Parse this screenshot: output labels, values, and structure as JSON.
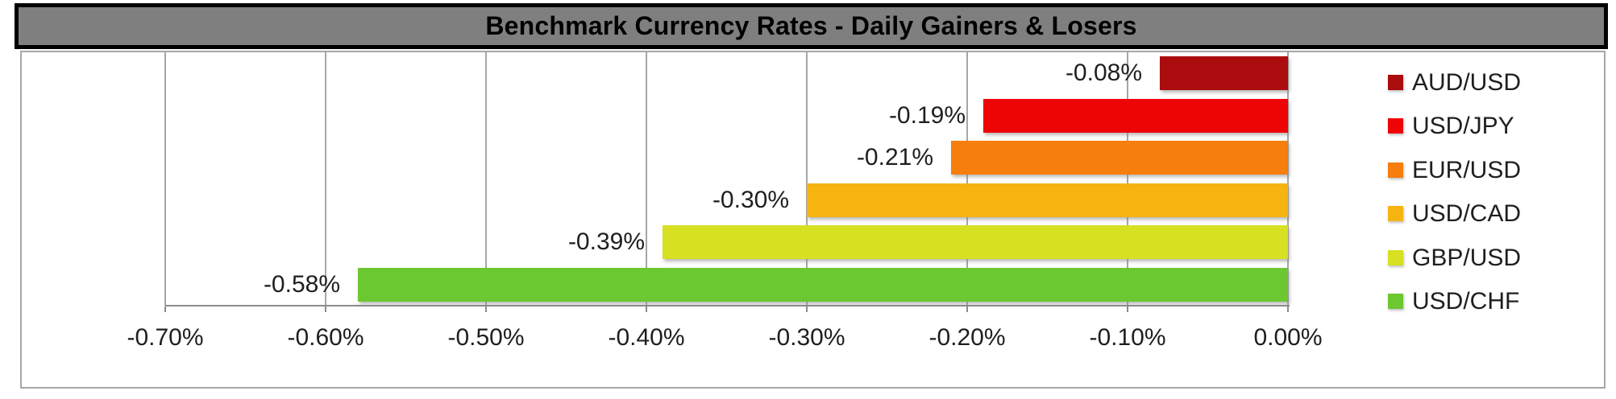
{
  "title": "Benchmark Currency Rates - Daily Gainers & Losers",
  "colors": {
    "title_bg": "#7f7f7f",
    "title_border": "#000000",
    "title_text": "#000000",
    "body_border": "#a6a6a6",
    "gridline": "#a6a6a6",
    "axis": "#8c8c8c",
    "label_text": "#1f1f1f"
  },
  "chart_data": {
    "type": "bar",
    "orientation": "horizontal",
    "title": "Benchmark Currency Rates - Daily Gainers & Losers",
    "xlabel": "",
    "ylabel": "",
    "grid": true,
    "legend_position": "right",
    "x_axis": {
      "min": -0.7,
      "max": 0.0,
      "tick_step": 0.1,
      "unit": "%",
      "ticks": [
        {
          "value": -0.7,
          "label": "-0.70%"
        },
        {
          "value": -0.6,
          "label": "-0.60%"
        },
        {
          "value": -0.5,
          "label": "-0.50%"
        },
        {
          "value": -0.4,
          "label": "-0.40%"
        },
        {
          "value": -0.3,
          "label": "-0.30%"
        },
        {
          "value": -0.2,
          "label": "-0.20%"
        },
        {
          "value": -0.1,
          "label": "-0.10%"
        },
        {
          "value": 0.0,
          "label": "0.00%"
        }
      ]
    },
    "series": [
      {
        "name": "AUD/USD",
        "value": -0.08,
        "label": "-0.08%",
        "color": "#ab0c0e"
      },
      {
        "name": "USD/JPY",
        "value": -0.19,
        "label": "-0.19%",
        "color": "#ee0505"
      },
      {
        "name": "EUR/USD",
        "value": -0.21,
        "label": "-0.21%",
        "color": "#f57e0c"
      },
      {
        "name": "USD/CAD",
        "value": -0.3,
        "label": "-0.30%",
        "color": "#f6b411"
      },
      {
        "name": "GBP/USD",
        "value": -0.39,
        "label": "-0.39%",
        "color": "#d7e021"
      },
      {
        "name": "USD/CHF",
        "value": -0.58,
        "label": "-0.58%",
        "color": "#6bc830"
      }
    ]
  }
}
